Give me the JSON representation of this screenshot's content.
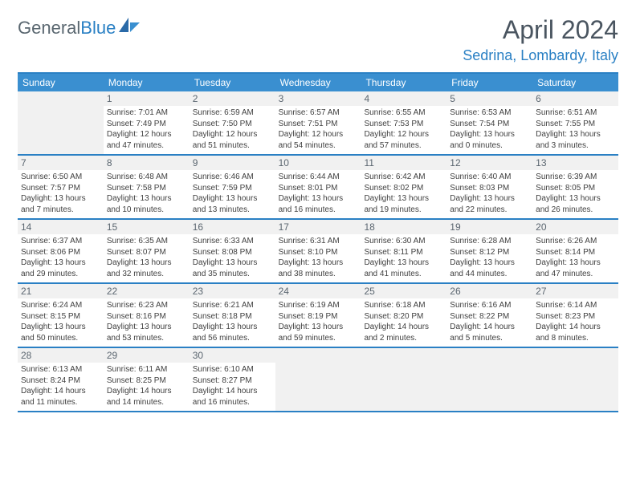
{
  "logo": {
    "general": "General",
    "blue": "Blue"
  },
  "title": "April 2024",
  "location": "Sedrina, Lombardy, Italy",
  "colors": {
    "header_blue": "#3a8fd0",
    "border_blue": "#2a80c4",
    "text_gray": "#5a6770",
    "shaded": "#f1f1f1"
  },
  "day_headers": [
    "Sunday",
    "Monday",
    "Tuesday",
    "Wednesday",
    "Thursday",
    "Friday",
    "Saturday"
  ],
  "weeks": [
    [
      {
        "day": "",
        "sunrise": "",
        "sunset": "",
        "daylight1": "",
        "daylight2": ""
      },
      {
        "day": "1",
        "sunrise": "Sunrise: 7:01 AM",
        "sunset": "Sunset: 7:49 PM",
        "daylight1": "Daylight: 12 hours",
        "daylight2": "and 47 minutes."
      },
      {
        "day": "2",
        "sunrise": "Sunrise: 6:59 AM",
        "sunset": "Sunset: 7:50 PM",
        "daylight1": "Daylight: 12 hours",
        "daylight2": "and 51 minutes."
      },
      {
        "day": "3",
        "sunrise": "Sunrise: 6:57 AM",
        "sunset": "Sunset: 7:51 PM",
        "daylight1": "Daylight: 12 hours",
        "daylight2": "and 54 minutes."
      },
      {
        "day": "4",
        "sunrise": "Sunrise: 6:55 AM",
        "sunset": "Sunset: 7:53 PM",
        "daylight1": "Daylight: 12 hours",
        "daylight2": "and 57 minutes."
      },
      {
        "day": "5",
        "sunrise": "Sunrise: 6:53 AM",
        "sunset": "Sunset: 7:54 PM",
        "daylight1": "Daylight: 13 hours",
        "daylight2": "and 0 minutes."
      },
      {
        "day": "6",
        "sunrise": "Sunrise: 6:51 AM",
        "sunset": "Sunset: 7:55 PM",
        "daylight1": "Daylight: 13 hours",
        "daylight2": "and 3 minutes."
      }
    ],
    [
      {
        "day": "7",
        "sunrise": "Sunrise: 6:50 AM",
        "sunset": "Sunset: 7:57 PM",
        "daylight1": "Daylight: 13 hours",
        "daylight2": "and 7 minutes."
      },
      {
        "day": "8",
        "sunrise": "Sunrise: 6:48 AM",
        "sunset": "Sunset: 7:58 PM",
        "daylight1": "Daylight: 13 hours",
        "daylight2": "and 10 minutes."
      },
      {
        "day": "9",
        "sunrise": "Sunrise: 6:46 AM",
        "sunset": "Sunset: 7:59 PM",
        "daylight1": "Daylight: 13 hours",
        "daylight2": "and 13 minutes."
      },
      {
        "day": "10",
        "sunrise": "Sunrise: 6:44 AM",
        "sunset": "Sunset: 8:01 PM",
        "daylight1": "Daylight: 13 hours",
        "daylight2": "and 16 minutes."
      },
      {
        "day": "11",
        "sunrise": "Sunrise: 6:42 AM",
        "sunset": "Sunset: 8:02 PM",
        "daylight1": "Daylight: 13 hours",
        "daylight2": "and 19 minutes."
      },
      {
        "day": "12",
        "sunrise": "Sunrise: 6:40 AM",
        "sunset": "Sunset: 8:03 PM",
        "daylight1": "Daylight: 13 hours",
        "daylight2": "and 22 minutes."
      },
      {
        "day": "13",
        "sunrise": "Sunrise: 6:39 AM",
        "sunset": "Sunset: 8:05 PM",
        "daylight1": "Daylight: 13 hours",
        "daylight2": "and 26 minutes."
      }
    ],
    [
      {
        "day": "14",
        "sunrise": "Sunrise: 6:37 AM",
        "sunset": "Sunset: 8:06 PM",
        "daylight1": "Daylight: 13 hours",
        "daylight2": "and 29 minutes."
      },
      {
        "day": "15",
        "sunrise": "Sunrise: 6:35 AM",
        "sunset": "Sunset: 8:07 PM",
        "daylight1": "Daylight: 13 hours",
        "daylight2": "and 32 minutes."
      },
      {
        "day": "16",
        "sunrise": "Sunrise: 6:33 AM",
        "sunset": "Sunset: 8:08 PM",
        "daylight1": "Daylight: 13 hours",
        "daylight2": "and 35 minutes."
      },
      {
        "day": "17",
        "sunrise": "Sunrise: 6:31 AM",
        "sunset": "Sunset: 8:10 PM",
        "daylight1": "Daylight: 13 hours",
        "daylight2": "and 38 minutes."
      },
      {
        "day": "18",
        "sunrise": "Sunrise: 6:30 AM",
        "sunset": "Sunset: 8:11 PM",
        "daylight1": "Daylight: 13 hours",
        "daylight2": "and 41 minutes."
      },
      {
        "day": "19",
        "sunrise": "Sunrise: 6:28 AM",
        "sunset": "Sunset: 8:12 PM",
        "daylight1": "Daylight: 13 hours",
        "daylight2": "and 44 minutes."
      },
      {
        "day": "20",
        "sunrise": "Sunrise: 6:26 AM",
        "sunset": "Sunset: 8:14 PM",
        "daylight1": "Daylight: 13 hours",
        "daylight2": "and 47 minutes."
      }
    ],
    [
      {
        "day": "21",
        "sunrise": "Sunrise: 6:24 AM",
        "sunset": "Sunset: 8:15 PM",
        "daylight1": "Daylight: 13 hours",
        "daylight2": "and 50 minutes."
      },
      {
        "day": "22",
        "sunrise": "Sunrise: 6:23 AM",
        "sunset": "Sunset: 8:16 PM",
        "daylight1": "Daylight: 13 hours",
        "daylight2": "and 53 minutes."
      },
      {
        "day": "23",
        "sunrise": "Sunrise: 6:21 AM",
        "sunset": "Sunset: 8:18 PM",
        "daylight1": "Daylight: 13 hours",
        "daylight2": "and 56 minutes."
      },
      {
        "day": "24",
        "sunrise": "Sunrise: 6:19 AM",
        "sunset": "Sunset: 8:19 PM",
        "daylight1": "Daylight: 13 hours",
        "daylight2": "and 59 minutes."
      },
      {
        "day": "25",
        "sunrise": "Sunrise: 6:18 AM",
        "sunset": "Sunset: 8:20 PM",
        "daylight1": "Daylight: 14 hours",
        "daylight2": "and 2 minutes."
      },
      {
        "day": "26",
        "sunrise": "Sunrise: 6:16 AM",
        "sunset": "Sunset: 8:22 PM",
        "daylight1": "Daylight: 14 hours",
        "daylight2": "and 5 minutes."
      },
      {
        "day": "27",
        "sunrise": "Sunrise: 6:14 AM",
        "sunset": "Sunset: 8:23 PM",
        "daylight1": "Daylight: 14 hours",
        "daylight2": "and 8 minutes."
      }
    ],
    [
      {
        "day": "28",
        "sunrise": "Sunrise: 6:13 AM",
        "sunset": "Sunset: 8:24 PM",
        "daylight1": "Daylight: 14 hours",
        "daylight2": "and 11 minutes."
      },
      {
        "day": "29",
        "sunrise": "Sunrise: 6:11 AM",
        "sunset": "Sunset: 8:25 PM",
        "daylight1": "Daylight: 14 hours",
        "daylight2": "and 14 minutes."
      },
      {
        "day": "30",
        "sunrise": "Sunrise: 6:10 AM",
        "sunset": "Sunset: 8:27 PM",
        "daylight1": "Daylight: 14 hours",
        "daylight2": "and 16 minutes."
      },
      {
        "day": "",
        "sunrise": "",
        "sunset": "",
        "daylight1": "",
        "daylight2": ""
      },
      {
        "day": "",
        "sunrise": "",
        "sunset": "",
        "daylight1": "",
        "daylight2": ""
      },
      {
        "day": "",
        "sunrise": "",
        "sunset": "",
        "daylight1": "",
        "daylight2": ""
      },
      {
        "day": "",
        "sunrise": "",
        "sunset": "",
        "daylight1": "",
        "daylight2": ""
      }
    ]
  ]
}
